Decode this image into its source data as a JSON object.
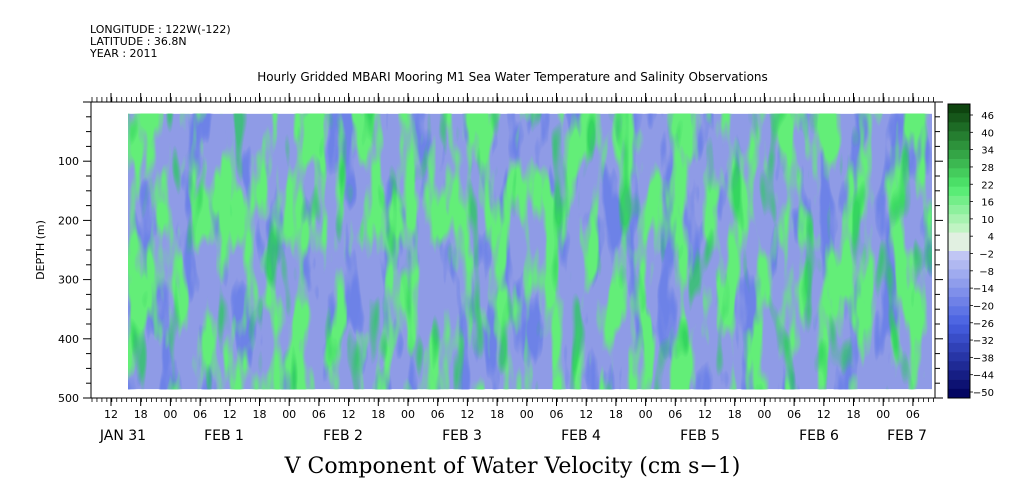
{
  "header": {
    "longitude": "LONGITUDE : 122W(-122)",
    "latitude": "LATITUDE : 36.8N",
    "year": "YEAR : 2011"
  },
  "chart_data": {
    "type": "heatmap",
    "title": "Hourly Gridded MBARI Mooring M1 Sea Water Temperature and Salinity Observations",
    "xlabel": "V Component of Water Velocity (cm s−1)",
    "ylabel": "DEPTH (m)",
    "ylim": [
      500,
      0
    ],
    "y_ticks": [
      100,
      200,
      300,
      400,
      500
    ],
    "x_hour_ticks": [
      "12",
      "18",
      "00",
      "06",
      "12",
      "18",
      "00",
      "06",
      "12",
      "18",
      "00",
      "06",
      "12",
      "18",
      "00",
      "06",
      "12",
      "18",
      "00",
      "06",
      "12",
      "18",
      "00",
      "06",
      "12",
      "18",
      "00",
      "06"
    ],
    "x_date_labels": [
      "JAN 31",
      "FEB  1",
      "FEB  2",
      "FEB  3",
      "FEB  4",
      "FEB  5",
      "FEB  6",
      "FEB  7"
    ],
    "colorbar_levels": [
      "46",
      "40",
      "34",
      "28",
      "22",
      "16",
      "10",
      "4",
      "−2",
      "−8",
      "−14",
      "−20",
      "−26",
      "−32",
      "−38",
      "−44",
      "−50"
    ],
    "colorbar_range": [
      -50,
      46
    ],
    "colorbar_step": 3,
    "data_extent": {
      "depth_min": 20,
      "depth_max": 485
    },
    "colors": {
      "positive_green": "#66f07a",
      "near_zero": "#d8f0d8",
      "negative_blue": "#8f9be6",
      "deep_blue": "#000060",
      "dark_green": "#0a3a0a"
    }
  }
}
